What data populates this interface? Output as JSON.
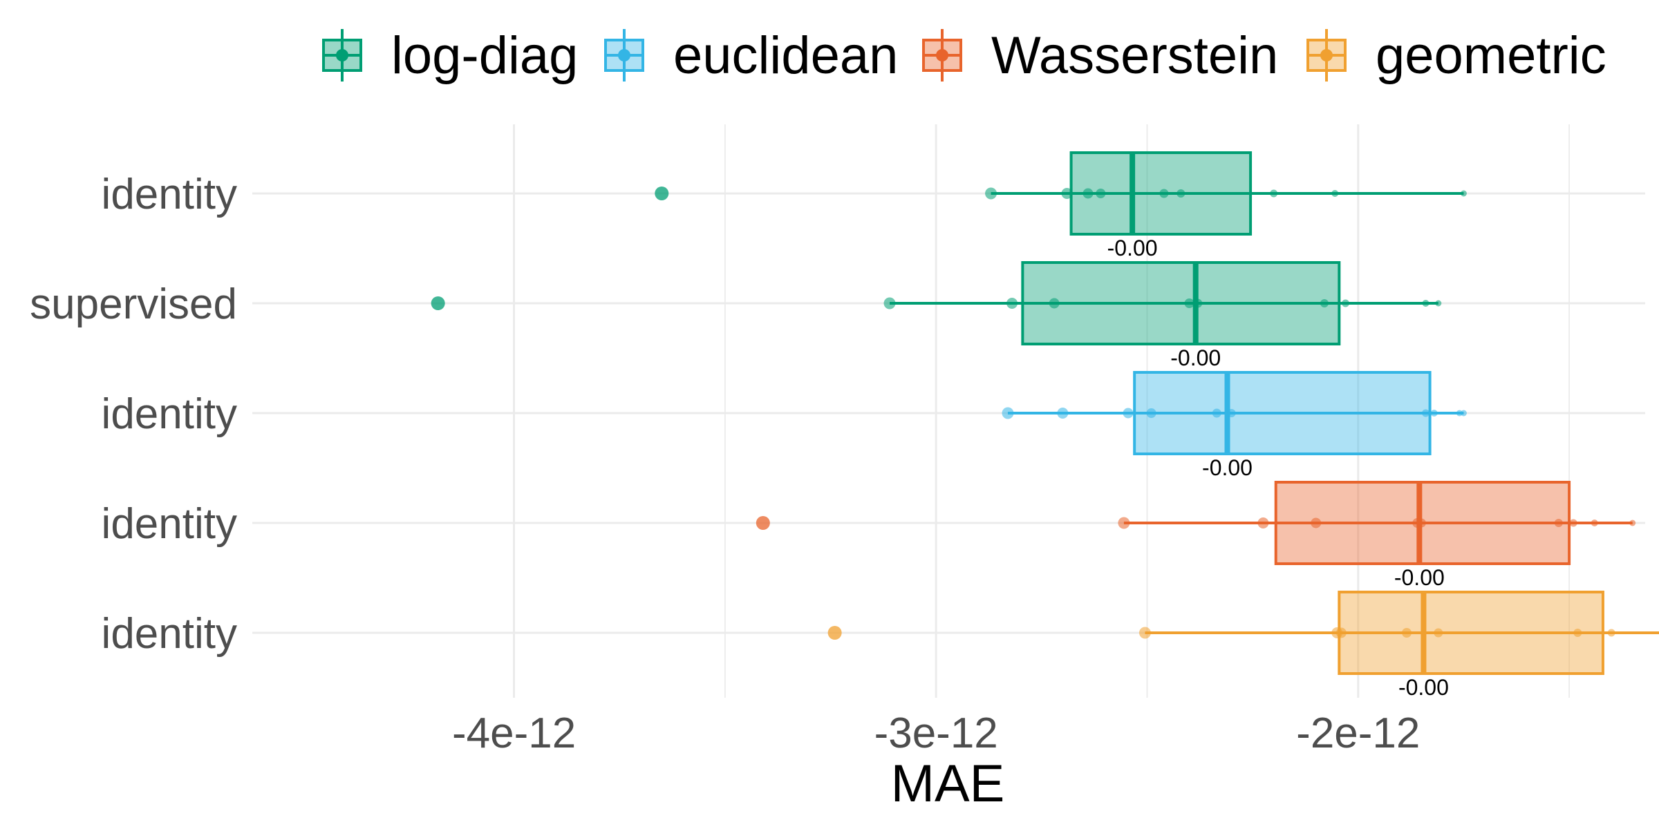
{
  "chart_data": {
    "type": "boxplot",
    "orientation": "horizontal",
    "xlabel": "MAE",
    "xlim": [
      -4.62e-12,
      -1.32e-12
    ],
    "x_ticks": [
      {
        "value": -4e-12,
        "label": "-4e-12"
      },
      {
        "value": -3e-12,
        "label": "-3e-12"
      },
      {
        "value": -2e-12,
        "label": "-2e-12"
      }
    ],
    "x_minor_grid": [
      -3.5e-12,
      -2.5e-12,
      -1.5e-12
    ],
    "grid": true,
    "legend_position": "top",
    "legend": [
      {
        "name": "log-diag",
        "color": "#009E73"
      },
      {
        "name": "euclidean",
        "color": "#33B5E5"
      },
      {
        "name": "Wasserstein",
        "color": "#E8642C"
      },
      {
        "name": "geometric",
        "color": "#F0A030"
      }
    ],
    "rows": [
      {
        "label": "identity",
        "series": "log-diag",
        "color": "#009E73",
        "box": {
          "q1": -2.68e-12,
          "median": -2.535e-12,
          "q3": -2.255e-12,
          "whisker_low": -2.87e-12,
          "whisker_high": -1.75e-12
        },
        "outliers": [
          -3.65e-12
        ],
        "points": [
          -2.87e-12,
          -2.69e-12,
          -2.64e-12,
          -2.61e-12,
          -2.46e-12,
          -2.42e-12,
          -2.2e-12,
          -2.055e-12,
          -1.75e-12
        ],
        "annotation": "-0.00"
      },
      {
        "label": "supervised",
        "series": "log-diag",
        "color": "#009E73",
        "box": {
          "q1": -2.795e-12,
          "median": -2.385e-12,
          "q3": -2.045e-12,
          "whisker_low": -3.11e-12,
          "whisker_high": -1.81e-12
        },
        "outliers": [
          -4.18e-12
        ],
        "points": [
          -3.11e-12,
          -2.82e-12,
          -2.72e-12,
          -2.4e-12,
          -2.38e-12,
          -2.08e-12,
          -2.03e-12,
          -1.84e-12,
          -1.81e-12
        ],
        "annotation": "-0.00"
      },
      {
        "label": "identity",
        "series": "euclidean",
        "color": "#33B5E5",
        "box": {
          "q1": -2.53e-12,
          "median": -2.31e-12,
          "q3": -1.83e-12,
          "whisker_low": -2.83e-12,
          "whisker_high": -1.75e-12
        },
        "outliers": [],
        "points": [
          -2.83e-12,
          -2.7e-12,
          -2.545e-12,
          -2.49e-12,
          -2.335e-12,
          -2.3e-12,
          -1.84e-12,
          -1.82e-12,
          -1.76e-12,
          -1.75e-12
        ],
        "annotation": "-0.00"
      },
      {
        "label": "identity",
        "series": "Wasserstein",
        "color": "#E8642C",
        "box": {
          "q1": -2.195e-12,
          "median": -1.855e-12,
          "q3": -1.5e-12,
          "whisker_low": -2.555e-12,
          "whisker_high": -1.35e-12
        },
        "outliers": [
          -3.41e-12
        ],
        "points": [
          -2.555e-12,
          -2.225e-12,
          -2.1e-12,
          -1.86e-12,
          -1.85e-12,
          -1.525e-12,
          -1.49e-12,
          -1.44e-12,
          -1.35e-12
        ],
        "annotation": "-0.00"
      },
      {
        "label": "identity",
        "series": "geometric",
        "color": "#F0A030",
        "box": {
          "q1": -2.045e-12,
          "median": -1.845e-12,
          "q3": -1.42e-12,
          "whisker_low": -2.505e-12,
          "whisker_high": -1.17e-12
        },
        "outliers": [
          -3.24e-12
        ],
        "points": [
          -2.505e-12,
          -2.05e-12,
          -2.04e-12,
          -1.885e-12,
          -1.81e-12,
          -1.48e-12,
          -1.4e-12,
          -1.275e-12,
          -1.17e-12
        ],
        "annotation": "-0.00"
      }
    ]
  }
}
